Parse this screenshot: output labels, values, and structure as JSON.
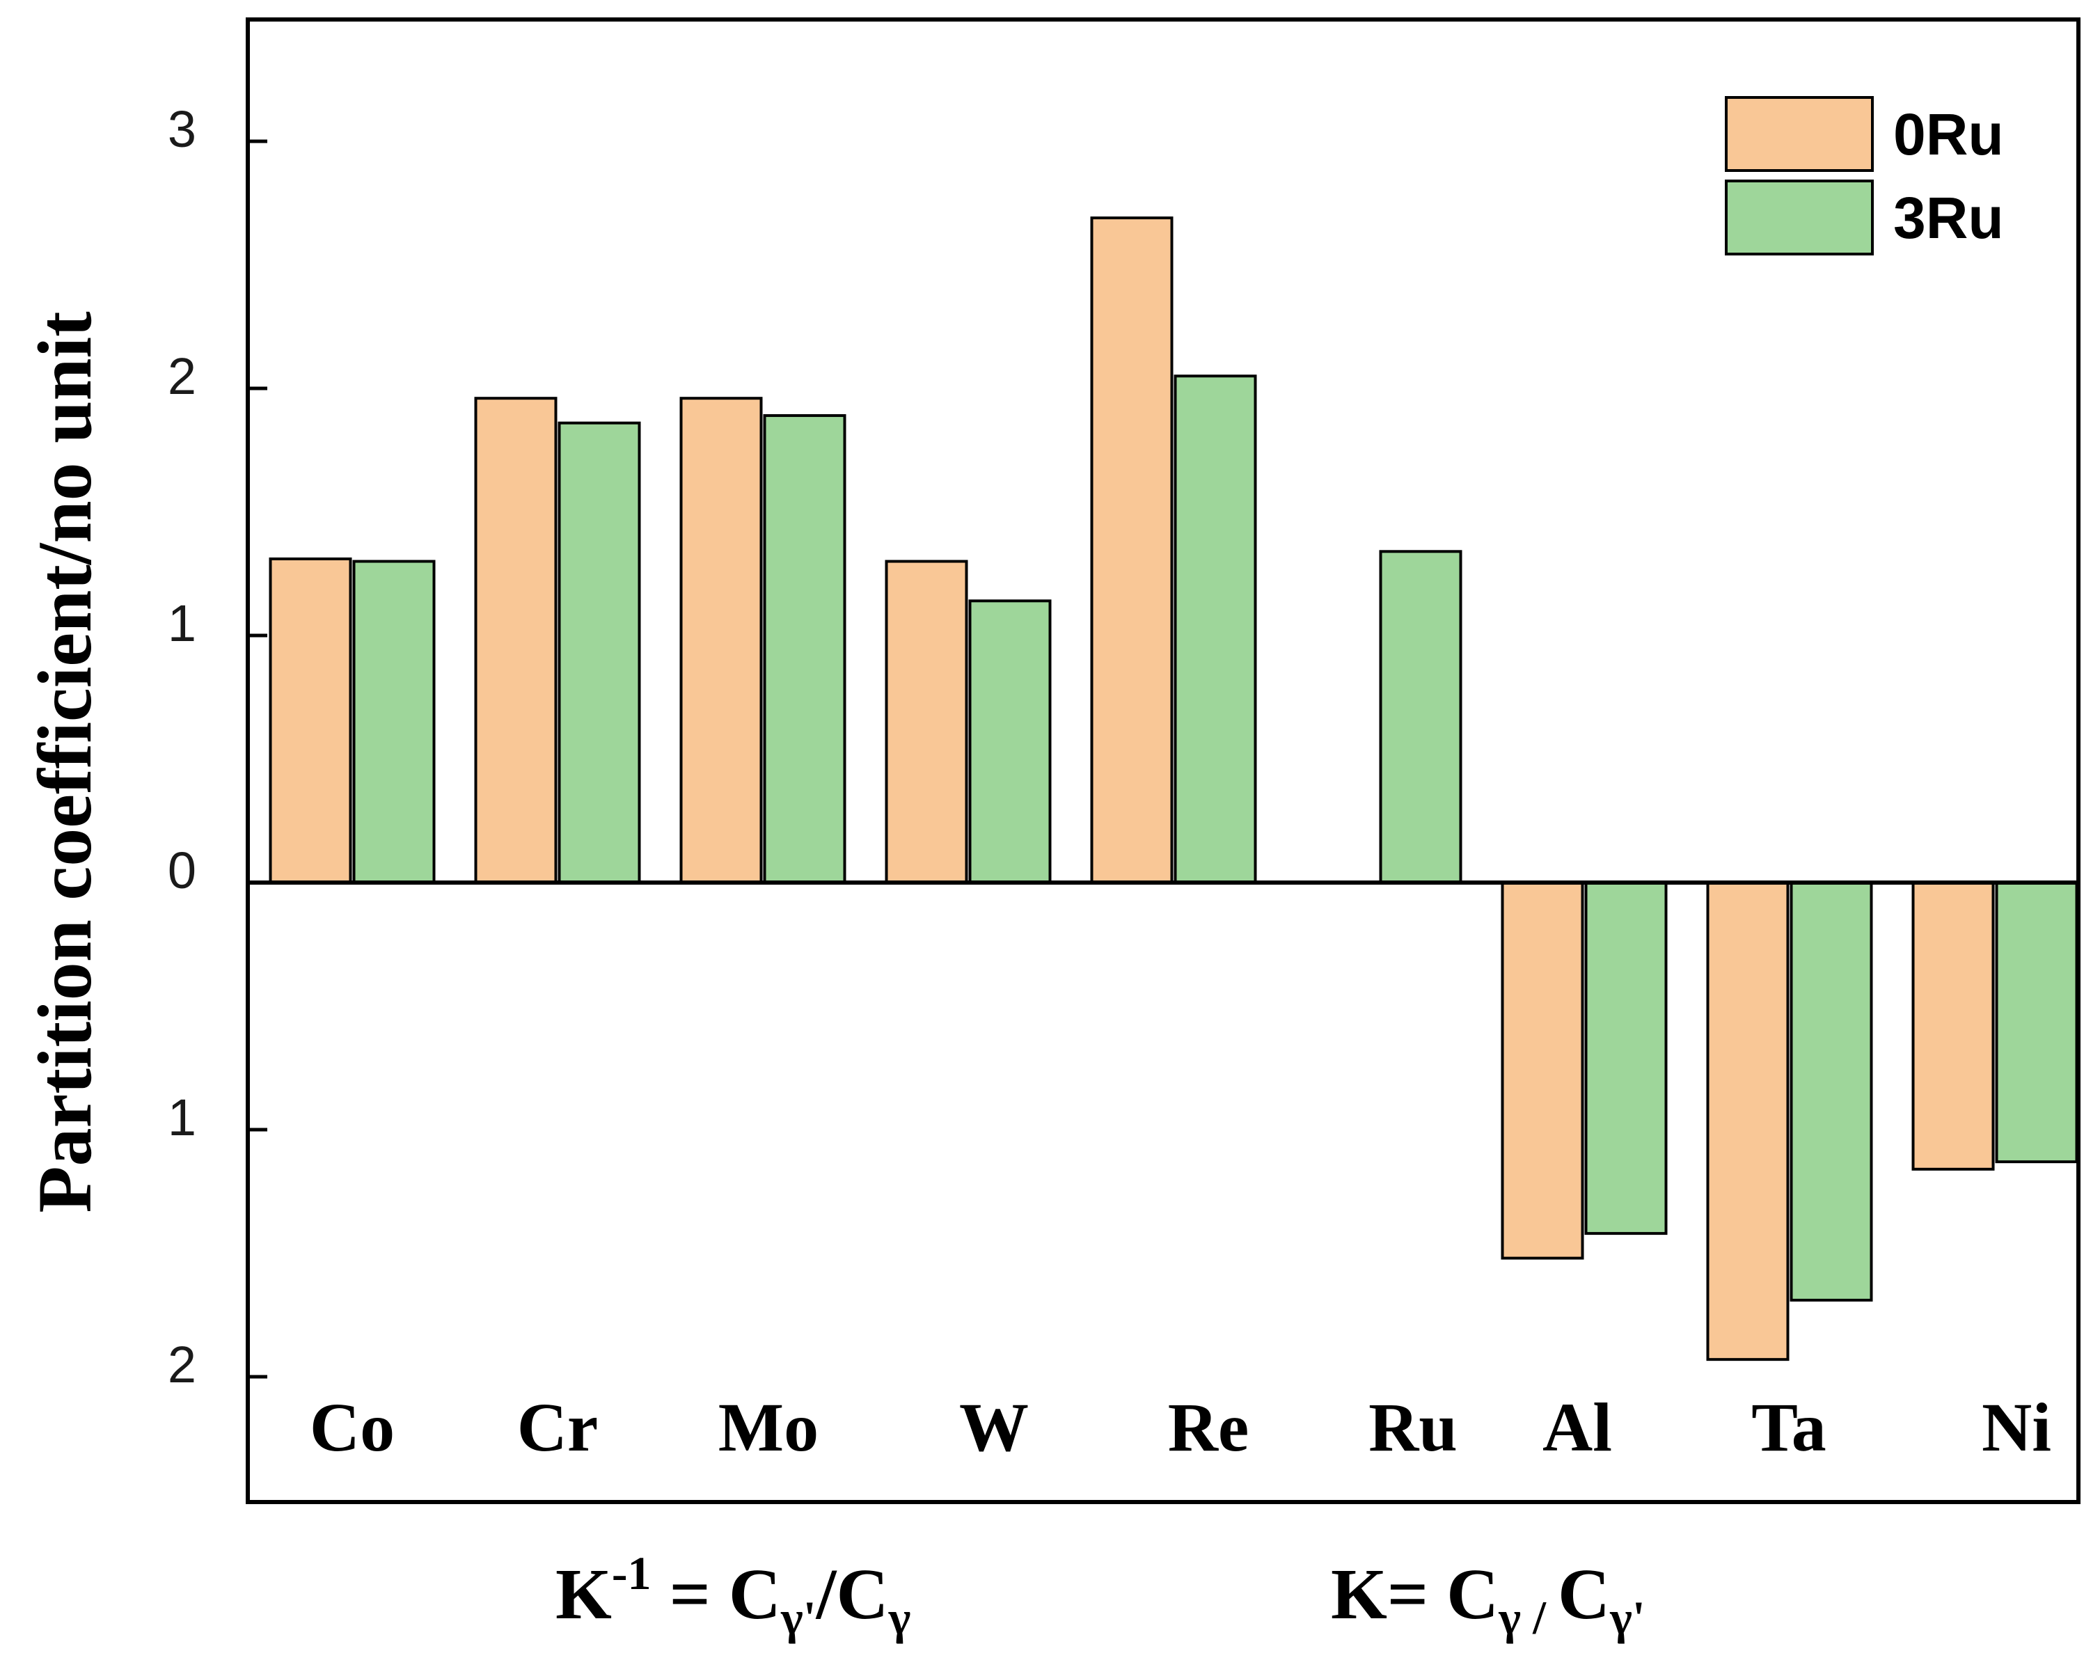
{
  "chart_data": {
    "type": "bar",
    "ylabel": "Partition coefficient/no unit",
    "xlabel": "",
    "categories": [
      "Co",
      "Cr",
      "Mo",
      "W",
      "Re",
      "Ru",
      "Al",
      "Ta",
      "Ni"
    ],
    "series": [
      {
        "name": "0Ru",
        "color": "#f9c796",
        "values": [
          1.31,
          1.96,
          1.96,
          1.3,
          2.69,
          null,
          -1.52,
          -1.93,
          -1.16
        ]
      },
      {
        "name": "3Ru",
        "color": "#9ed69a",
        "values": [
          1.3,
          1.86,
          1.89,
          1.14,
          2.05,
          1.34,
          -1.42,
          -1.69,
          -1.13
        ]
      }
    ],
    "ylim": [
      -2.5,
      3.5
    ],
    "yticks": [
      {
        "value": 3,
        "label": "3"
      },
      {
        "value": 2,
        "label": "2"
      },
      {
        "value": 1,
        "label": "1"
      },
      {
        "value": 0,
        "label": "0"
      },
      {
        "value": -1,
        "label": "1"
      },
      {
        "value": -2,
        "label": "2"
      }
    ],
    "legend_position": "top-right",
    "annotations": {
      "left_formula": {
        "main": "K",
        "sup": "-1",
        "rest": " = C",
        "sub1": "γ'",
        "mid": "/C",
        "sub2": "γ"
      },
      "right_formula": {
        "main": "K= C",
        "sub1": "γ / ",
        "mid": "C",
        "sub2": "γ'"
      }
    },
    "grid": false
  }
}
